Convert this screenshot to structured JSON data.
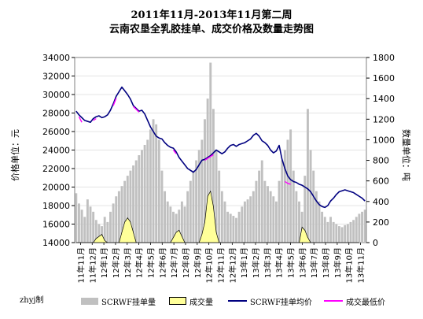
{
  "chart_data": {
    "type": "combo-bar-area-line",
    "title": "2011年11月-2013年11月第二周",
    "subtitle": "云南农垦全乳胶挂单、成交价格及数量走势图",
    "ylabel_left": "价格单位：元",
    "ylabel_right": "数量单位：吨",
    "credit": "zhyj制",
    "y_left": {
      "min": 14000,
      "max": 34000,
      "step": 2000
    },
    "y_right": {
      "min": 0,
      "max": 1800,
      "step": 200
    },
    "x_tick_labels": [
      "11年11月",
      "11年12月",
      "12年1月",
      "12年2月",
      "12年3月",
      "12年4月",
      "12年5月",
      "12年6月",
      "12年7月",
      "12年8月",
      "12年9月",
      "12年10月",
      "12年11月",
      "12年12月",
      "13年1月",
      "13年2月",
      "13年3月",
      "13年4月",
      "13年5月",
      "13年6月",
      "13年7月",
      "13年8月",
      "13年9月",
      "13年10月",
      "13年11月"
    ],
    "series": [
      {
        "name": "SCRWF挂单量",
        "axis": "right",
        "kind": "bar",
        "color": "#c0c0c0",
        "values": [
          480,
          380,
          320,
          250,
          420,
          350,
          300,
          220,
          180,
          160,
          250,
          200,
          300,
          380,
          450,
          500,
          550,
          600,
          650,
          700,
          750,
          800,
          850,
          900,
          950,
          1000,
          1100,
          1200,
          1150,
          1000,
          700,
          500,
          400,
          350,
          300,
          280,
          320,
          400,
          350,
          500,
          600,
          700,
          800,
          900,
          1000,
          1200,
          1400,
          1750,
          1300,
          900,
          700,
          500,
          400,
          300,
          280,
          260,
          240,
          300,
          350,
          400,
          420,
          450,
          500,
          600,
          700,
          800,
          600,
          550,
          500,
          450,
          400,
          600,
          800,
          900,
          1000,
          1100,
          700,
          500,
          400,
          300,
          650,
          1300,
          900,
          700,
          500,
          400,
          300,
          250,
          200,
          250,
          200,
          180,
          160,
          150,
          170,
          180,
          200,
          220,
          250,
          280,
          300,
          320
        ]
      },
      {
        "name": "成交量",
        "axis": "right",
        "kind": "area",
        "color": "#ffff99",
        "values": [
          0,
          0,
          0,
          0,
          0,
          0,
          0,
          40,
          60,
          80,
          20,
          0,
          0,
          0,
          0,
          0,
          100,
          200,
          240,
          200,
          100,
          0,
          0,
          0,
          0,
          0,
          0,
          0,
          0,
          0,
          0,
          0,
          0,
          0,
          50,
          100,
          120,
          60,
          0,
          0,
          0,
          0,
          0,
          0,
          80,
          200,
          450,
          500,
          350,
          100,
          0,
          0,
          0,
          0,
          0,
          0,
          0,
          0,
          0,
          0,
          0,
          0,
          0,
          0,
          0,
          0,
          0,
          0,
          0,
          0,
          0,
          0,
          0,
          0,
          0,
          0,
          0,
          0,
          0,
          150,
          120,
          50,
          0,
          0,
          0,
          0,
          0,
          0,
          0,
          0,
          0,
          0,
          0,
          0,
          0,
          0,
          0,
          0,
          0,
          0
        ]
      },
      {
        "name": "SCRWF挂单均价",
        "axis": "left",
        "kind": "line",
        "color": "#000080",
        "values": [
          28200,
          27800,
          27500,
          27200,
          27100,
          27000,
          27400,
          27600,
          27700,
          27500,
          27600,
          27800,
          28300,
          29000,
          29800,
          30300,
          30800,
          30400,
          30000,
          29500,
          28800,
          28500,
          28200,
          28300,
          27900,
          27200,
          26500,
          26000,
          25500,
          25300,
          25200,
          24800,
          24500,
          24300,
          24200,
          23800,
          23200,
          22800,
          22400,
          22000,
          21800,
          21600,
          21900,
          22400,
          22900,
          23000,
          23200,
          23400,
          23700,
          24000,
          23800,
          23600,
          23800,
          24200,
          24500,
          24600,
          24400,
          24600,
          24700,
          24800,
          25000,
          25200,
          25600,
          25800,
          25500,
          25000,
          24800,
          24500,
          24000,
          23700,
          23900,
          24500,
          23000,
          22000,
          21200,
          20800,
          20600,
          20500,
          20300,
          20200,
          20000,
          19800,
          19500,
          19000,
          18500,
          18100,
          17900,
          17800,
          18000,
          18500,
          18800,
          19200,
          19500,
          19600,
          19700,
          19600,
          19500,
          19400,
          19200,
          19000,
          18800,
          18500
        ]
      },
      {
        "name": "成交最低价",
        "axis": "left",
        "kind": "line",
        "color": "#ff00ff",
        "values": [
          null,
          27600,
          27000,
          null,
          null,
          null,
          27200,
          27400,
          null,
          null,
          null,
          null,
          null,
          28800,
          29600,
          null,
          30500,
          null,
          null,
          null,
          28700,
          28400,
          28100,
          null,
          null,
          null,
          null,
          null,
          null,
          null,
          null,
          null,
          null,
          null,
          24000,
          23600,
          null,
          null,
          null,
          null,
          null,
          null,
          null,
          22300,
          null,
          22900,
          23100,
          23300,
          23500,
          null,
          null,
          null,
          null,
          null,
          null,
          null,
          null,
          null,
          null,
          null,
          null,
          null,
          null,
          null,
          null,
          null,
          null,
          null,
          null,
          null,
          null,
          null,
          null,
          20600,
          20400,
          20300,
          null,
          null,
          null,
          null,
          null,
          null,
          null,
          null,
          null,
          null,
          null,
          null,
          null,
          null,
          null,
          null,
          null,
          null,
          null,
          null,
          null,
          null,
          null,
          null,
          null
        ]
      }
    ]
  }
}
